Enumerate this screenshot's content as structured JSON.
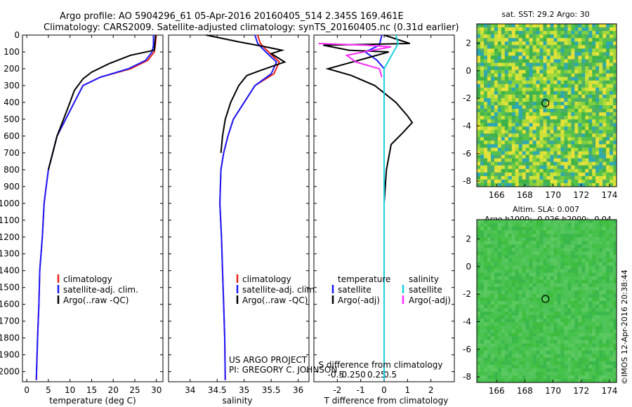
{
  "header": {
    "line1": "Argo profile: AO 5904296_61 05-Apr-2016 20160405_514 2.345S 169.461E",
    "line2": "Climatology: CARS2009. Satellite-adjusted climatology: synTS_20160405.nc (0.31d earlier)"
  },
  "colors": {
    "clim": "#e8201a",
    "sat": "#1a1aff",
    "argo": "#000000",
    "sat_cyan": "#1ad0e0",
    "argo_mag": "#ff2bff"
  },
  "chart_data": [
    {
      "type": "line",
      "id": "temperature",
      "xlabel": "temperature (deg C)",
      "xlim": [
        -1,
        31.5
      ],
      "ylim": [
        2060,
        0
      ],
      "xticks": [
        0,
        5,
        10,
        15,
        20,
        25,
        30
      ],
      "yticks": [
        0,
        100,
        200,
        300,
        400,
        500,
        600,
        700,
        800,
        900,
        1000,
        1100,
        1200,
        1300,
        1400,
        1500,
        1600,
        1700,
        1800,
        1900,
        2000
      ],
      "legend": [
        "climatology",
        "satellite-adj. clim.",
        "Argo(..raw -QC)"
      ],
      "series": [
        {
          "name": "climatology",
          "color": "#e8201a",
          "points": [
            [
              29.9,
              0
            ],
            [
              29.8,
              50
            ],
            [
              29.5,
              100
            ],
            [
              28,
              150
            ],
            [
              24,
              200
            ],
            [
              17,
              250
            ],
            [
              13,
              300
            ],
            [
              11,
              400
            ],
            [
              9,
              500
            ],
            [
              7,
              600
            ],
            [
              6,
              700
            ],
            [
              5,
              800
            ],
            [
              4.5,
              900
            ],
            [
              4,
              1000
            ],
            [
              3.6,
              1200
            ],
            [
              3,
              1400
            ],
            [
              2.8,
              1600
            ],
            [
              2.5,
              1800
            ],
            [
              2.2,
              2050
            ]
          ]
        },
        {
          "name": "satellite-adj. clim.",
          "color": "#1a1aff",
          "points": [
            [
              29.3,
              0
            ],
            [
              29.3,
              60
            ],
            [
              29,
              100
            ],
            [
              27.5,
              150
            ],
            [
              23.5,
              200
            ],
            [
              17,
              250
            ],
            [
              13,
              300
            ],
            [
              11,
              400
            ],
            [
              9,
              500
            ],
            [
              7,
              600
            ],
            [
              6,
              700
            ],
            [
              5,
              800
            ],
            [
              4.5,
              900
            ],
            [
              4,
              1000
            ],
            [
              3.6,
              1200
            ],
            [
              3,
              1400
            ],
            [
              2.8,
              1600
            ],
            [
              2.5,
              1800
            ],
            [
              2.2,
              2050
            ]
          ]
        },
        {
          "name": "Argo(..raw -QC)",
          "color": "#000000",
          "points": [
            [
              29.8,
              0
            ],
            [
              29.5,
              90
            ],
            [
              24,
              120
            ],
            [
              19,
              170
            ],
            [
              15,
              220
            ],
            [
              13,
              260
            ],
            [
              11,
              330
            ],
            [
              10,
              400
            ],
            [
              8.5,
              500
            ],
            [
              7,
              600
            ],
            [
              6,
              700
            ],
            [
              5,
              800
            ]
          ]
        }
      ]
    },
    {
      "type": "line",
      "id": "salinity",
      "xlabel": "salinity",
      "xlim": [
        33.6,
        36.2
      ],
      "ylim": [
        2060,
        0
      ],
      "xticks": [
        34,
        34.5,
        35,
        35.5,
        36
      ],
      "legend": [
        "climatology",
        "satellite-adj. clim.",
        "Argo(..raw -QC)"
      ],
      "annotation": [
        "US ARGO PROJECT",
        "PI: GREGORY C. JOHNSON"
      ],
      "series": [
        {
          "name": "climatology",
          "color": "#e8201a",
          "points": [
            [
              35.25,
              0
            ],
            [
              35.3,
              50
            ],
            [
              35.45,
              100
            ],
            [
              35.65,
              160
            ],
            [
              35.55,
              230
            ],
            [
              35.2,
              300
            ],
            [
              35,
              400
            ],
            [
              34.8,
              500
            ],
            [
              34.7,
              600
            ],
            [
              34.62,
              700
            ],
            [
              34.57,
              800
            ],
            [
              34.55,
              1000
            ],
            [
              34.58,
              1200
            ],
            [
              34.6,
              1400
            ],
            [
              34.62,
              1600
            ],
            [
              34.64,
              1800
            ],
            [
              34.65,
              2050
            ]
          ]
        },
        {
          "name": "satellite-adj. clim.",
          "color": "#1a1aff",
          "points": [
            [
              35.2,
              0
            ],
            [
              35.25,
              50
            ],
            [
              35.4,
              100
            ],
            [
              35.6,
              160
            ],
            [
              35.5,
              230
            ],
            [
              35.2,
              300
            ],
            [
              35,
              400
            ],
            [
              34.8,
              500
            ],
            [
              34.7,
              600
            ],
            [
              34.62,
              700
            ],
            [
              34.57,
              800
            ],
            [
              34.55,
              1000
            ],
            [
              34.58,
              1200
            ],
            [
              34.6,
              1400
            ],
            [
              34.62,
              1600
            ],
            [
              34.64,
              1800
            ],
            [
              34.65,
              2050
            ]
          ]
        },
        {
          "name": "Argo(..raw -QC)",
          "color": "#000000",
          "points": [
            [
              34.3,
              0
            ],
            [
              34.9,
              40
            ],
            [
              35.4,
              70
            ],
            [
              35.7,
              90
            ],
            [
              35.5,
              110
            ],
            [
              35.75,
              160
            ],
            [
              35.3,
              210
            ],
            [
              35.05,
              240
            ],
            [
              34.9,
              300
            ],
            [
              34.75,
              400
            ],
            [
              34.65,
              500
            ],
            [
              34.6,
              600
            ],
            [
              34.57,
              700
            ]
          ]
        }
      ]
    },
    {
      "type": "line",
      "id": "differences",
      "xlabel": "T difference from climatology",
      "xlabel2": "S difference from climatology",
      "xlim": [
        -3,
        3
      ],
      "ylim": [
        2060,
        0
      ],
      "xticks": [
        -2,
        -1,
        0,
        1,
        2
      ],
      "xticks_top": [
        -0.5,
        -0.25,
        0,
        0.25,
        0.5
      ],
      "legend_left": [
        "temperature",
        "satellite",
        "Argo(-adj)"
      ],
      "legend_right": [
        "salinity",
        "satellite",
        "Argo(-adj)"
      ],
      "series": [
        {
          "name": "temperature satellite",
          "color": "#1a1aff",
          "points": [
            [
              -0.1,
              0
            ],
            [
              -0.2,
              60
            ],
            [
              -0.8,
              100
            ],
            [
              -0.3,
              150
            ],
            [
              0,
              200
            ],
            [
              0,
              300
            ],
            [
              0,
              400
            ],
            [
              0,
              600
            ],
            [
              0,
              800
            ],
            [
              0,
              1000
            ],
            [
              0,
              1500
            ],
            [
              0,
              2050
            ]
          ]
        },
        {
          "name": "temperature Argo(-adj)",
          "color": "#000000",
          "points": [
            [
              0,
              0
            ],
            [
              1.1,
              50
            ],
            [
              -2.6,
              60
            ],
            [
              -1.5,
              90
            ],
            [
              0.2,
              100
            ],
            [
              -2.4,
              200
            ],
            [
              -1.4,
              240
            ],
            [
              -0.4,
              300
            ],
            [
              0.5,
              400
            ],
            [
              1,
              480
            ],
            [
              1.2,
              520
            ],
            [
              0.8,
              580
            ],
            [
              0.3,
              650
            ],
            [
              0.1,
              800
            ],
            [
              0,
              1000
            ]
          ]
        },
        {
          "name": "salinity satellite",
          "color": "#1ad0e0",
          "points": [
            [
              0.5,
              0
            ],
            [
              0.6,
              50
            ],
            [
              0.4,
              100
            ],
            [
              0.2,
              150
            ],
            [
              0,
              200
            ],
            [
              0,
              300
            ],
            [
              0,
              400
            ],
            [
              0,
              600
            ],
            [
              0,
              800
            ],
            [
              0,
              1000
            ],
            [
              0,
              1500
            ],
            [
              0,
              2050
            ]
          ]
        },
        {
          "name": "salinity Argo(-adj)",
          "color": "#ff2bff",
          "points": [
            [
              -2.8,
              50
            ],
            [
              -0.8,
              60
            ],
            [
              0.3,
              70
            ],
            [
              -0.5,
              90
            ],
            [
              -1.6,
              120
            ],
            [
              -1.2,
              160
            ],
            [
              -0.2,
              200
            ],
            [
              -0.1,
              250
            ]
          ]
        }
      ]
    },
    {
      "type": "heatmap",
      "id": "sst-map",
      "title": "sat. SST: 29.2 Argo: 30",
      "xlim": [
        164.6,
        174.5
      ],
      "ylim": [
        -8.4,
        3.4
      ],
      "xticks": [
        166,
        168,
        170,
        172,
        174
      ],
      "yticks": [
        -8,
        -6,
        -4,
        -2,
        0,
        2
      ],
      "marker": [
        169.461,
        -2.345
      ]
    },
    {
      "type": "heatmap",
      "id": "sla-map",
      "title": "Altim. SLA: 0.007",
      "subtitle": "Argo h1000: -0.026 h2000: -0.04",
      "xlim": [
        164.6,
        174.5
      ],
      "ylim": [
        -8.4,
        3.4
      ],
      "xticks": [
        166,
        168,
        170,
        172,
        174
      ],
      "yticks": [
        -8,
        -6,
        -4,
        -2,
        0,
        2
      ],
      "marker": [
        169.461,
        -2.345
      ]
    }
  ],
  "footer_credit": "©IMOS 12-Apr-2016 20:38:44"
}
